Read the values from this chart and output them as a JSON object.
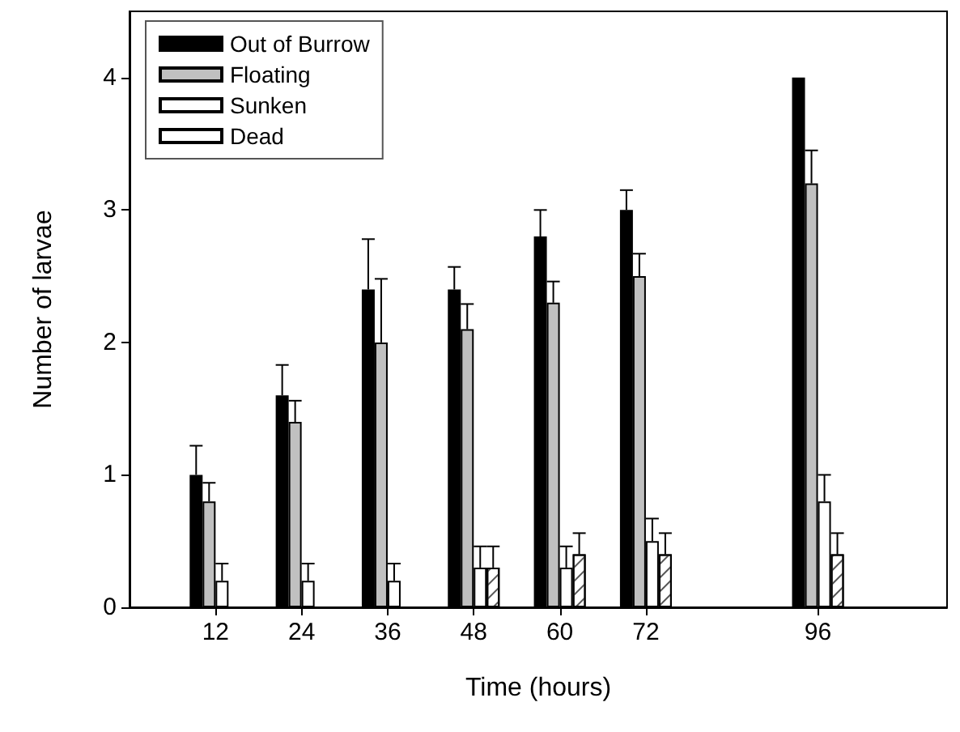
{
  "chart_data": {
    "type": "bar",
    "xlabel": "Time (hours)",
    "ylabel": "Number of larvae",
    "x": [
      12,
      24,
      36,
      48,
      60,
      72,
      96
    ],
    "xlim": [
      0,
      114
    ],
    "xticks": [
      12,
      24,
      36,
      48,
      60,
      72,
      96
    ],
    "ylim": [
      0,
      4.5
    ],
    "yticks": [
      0,
      1,
      2,
      3,
      4
    ],
    "grid": false,
    "legend": "top left",
    "series": [
      {
        "name": "Out of Burrow",
        "color": "#000000",
        "values": [
          1.0,
          1.6,
          2.4,
          2.4,
          2.8,
          3.0,
          4.0
        ],
        "errors": [
          [
            1.0,
            1.22
          ],
          [
            1.6,
            1.83
          ],
          [
            2.4,
            2.78
          ],
          [
            2.4,
            2.57
          ],
          [
            2.8,
            3.0
          ],
          [
            3.0,
            3.15
          ],
          null
        ]
      },
      {
        "name": "Floating",
        "color": "#c0c0c0",
        "values": [
          0.8,
          1.4,
          2.0,
          2.1,
          2.3,
          2.5,
          3.2
        ],
        "errors": [
          [
            0.8,
            0.94
          ],
          [
            1.4,
            1.56
          ],
          [
            2.0,
            2.48
          ],
          [
            2.1,
            2.29
          ],
          [
            2.3,
            2.46
          ],
          [
            2.5,
            2.67
          ],
          [
            3.2,
            3.45
          ]
        ]
      },
      {
        "name": "Sunken",
        "color": "#ffffff",
        "values": [
          0.2,
          0.2,
          0.2,
          0.3,
          0.3,
          0.5,
          0.8
        ],
        "errors": [
          [
            0.2,
            0.33
          ],
          [
            0.2,
            0.33
          ],
          [
            0.2,
            0.33
          ],
          [
            0.3,
            0.46
          ],
          [
            0.3,
            0.46
          ],
          [
            0.5,
            0.67
          ],
          [
            0.8,
            1.0
          ]
        ]
      },
      {
        "name": "Dead",
        "type": "bar",
        "color": "#ffffff",
        "values": [
          0,
          0,
          0,
          0.3,
          0.4,
          0.4,
          0.4
        ],
        "errors": [
          null,
          null,
          null,
          [
            0.3,
            0.46
          ],
          [
            0.4,
            0.56
          ],
          [
            0.4,
            0.56
          ],
          [
            0.4,
            0.56
          ]
        ]
      }
    ]
  }
}
